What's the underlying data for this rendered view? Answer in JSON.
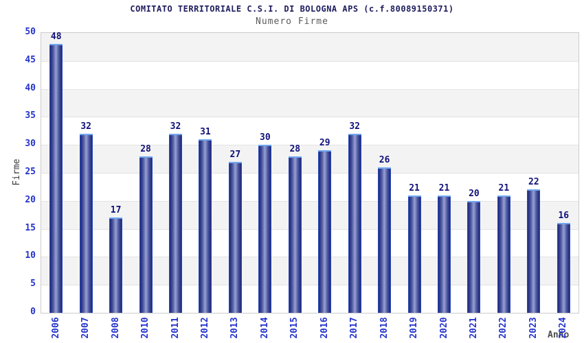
{
  "header": {
    "title": "COMITATO TERRITORIALE C.S.I. DI BOLOGNA APS (c.f.80089150371)",
    "subtitle": "Numero Firme"
  },
  "chart_data": {
    "type": "bar",
    "title": "COMITATO TERRITORIALE C.S.I. DI BOLOGNA APS (c.f.80089150371)",
    "subtitle": "Numero Firme",
    "xlabel": "Anno",
    "ylabel": "Firme",
    "categories": [
      "2006",
      "2007",
      "2008",
      "2010",
      "2011",
      "2012",
      "2013",
      "2014",
      "2015",
      "2016",
      "2017",
      "2018",
      "2019",
      "2020",
      "2021",
      "2022",
      "2023",
      "2024"
    ],
    "values": [
      48,
      32,
      17,
      28,
      32,
      31,
      27,
      30,
      28,
      29,
      32,
      26,
      21,
      21,
      20,
      21,
      22,
      16
    ],
    "ylim": [
      0,
      50
    ],
    "ytick_step": 5,
    "grid": true,
    "alternating_bands": true,
    "legend": "none",
    "colors": {
      "bar_dark": "#1f2a7d",
      "bar_light": "#97a1d4",
      "bar_edge": "#2e5cdb",
      "bar_top_cap": "#6fa5f1",
      "tick_label": "#2433cc",
      "value_label": "#10107a",
      "band_gray": "#f3f3f3",
      "band_white": "#ffffff",
      "gridline": "#e2e2e2",
      "plot_border": "#cccccc",
      "title": "#1c1c5e",
      "subtitle": "#5a5a5a",
      "axis_title": "#4d4d4d"
    }
  }
}
